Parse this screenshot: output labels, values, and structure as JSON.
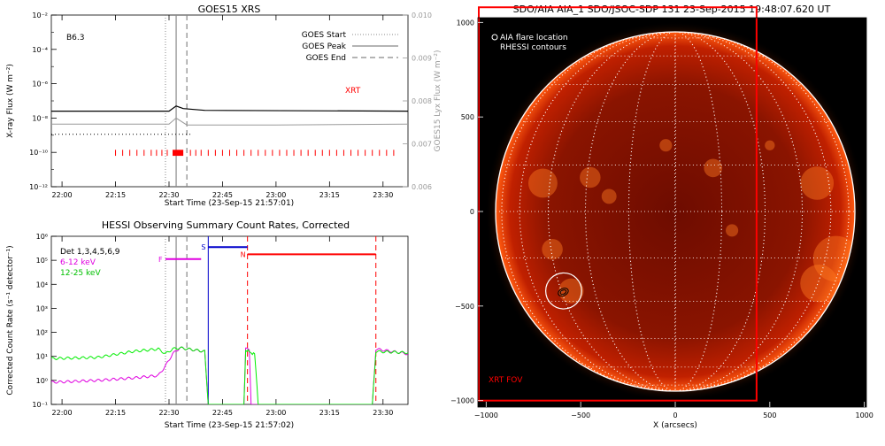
{
  "colors": {
    "black": "#000000",
    "gray": "#9a9a9a",
    "red": "#ff0000",
    "magenta": "#e000e0",
    "green": "#00ee00",
    "blue": "#0000cc",
    "sun_core": "#c81800",
    "sun_limb": "#5a0500",
    "background_dark": "#000000"
  },
  "chart_data": [
    {
      "id": "goes",
      "type": "line",
      "title": "GOES15 XRS",
      "xlabel": "Start Time (23-Sep-15 21:57:01)",
      "ylabel": "X-ray Flux (W m⁻²)",
      "ylabel_right": "GOES15 Lyx Flux (W m⁻²)",
      "x_ticks": [
        "22:00",
        "22:15",
        "22:30",
        "22:45",
        "23:00",
        "23:15",
        "23:30"
      ],
      "x_range_minutes": [
        -3,
        97
      ],
      "y_log_range": [
        -12,
        -2
      ],
      "y_ticks": [
        "10⁻²",
        "10⁻⁴",
        "10⁻⁶",
        "10⁻⁸",
        "10⁻¹⁰",
        "10⁻¹²"
      ],
      "y_right_ticks": [
        "0.010",
        "0.009",
        "0.008",
        "0.007",
        "0.006"
      ],
      "y_right_range": [
        0.006,
        0.01
      ],
      "class_label": "B6.3",
      "legend": [
        {
          "label": "GOES Start",
          "style": "dotted"
        },
        {
          "label": "GOES Peak",
          "style": "solid"
        },
        {
          "label": "GOES End",
          "style": "dashed"
        }
      ],
      "legend_position": "top-right",
      "xrt_label": "XRT",
      "series": [
        {
          "style": "solid-black",
          "points": [
            [
              -3,
              -7.6
            ],
            [
              30,
              -7.6
            ],
            [
              32,
              -7.3
            ],
            [
              34,
              -7.45
            ],
            [
              40,
              -7.55
            ],
            [
              97,
              -7.6
            ]
          ]
        },
        {
          "style": "solid-gray",
          "points": [
            [
              -3,
              -8.35
            ],
            [
              30,
              -8.35
            ],
            [
              32,
              -8.0
            ],
            [
              35,
              -8.4
            ],
            [
              60,
              -8.4
            ],
            [
              97,
              -8.35
            ]
          ]
        },
        {
          "style": "dotted-black",
          "points": [
            [
              -3,
              -8.95
            ],
            [
              36,
              -8.95
            ]
          ]
        }
      ],
      "xrt_obs_minutes": [
        15,
        17,
        19,
        21,
        23,
        25,
        26.5,
        28,
        29.5,
        36,
        37.5,
        39,
        41,
        43,
        45,
        47,
        49,
        51,
        53,
        55,
        57,
        59,
        61,
        63,
        65,
        67,
        69,
        71,
        73,
        75,
        77,
        79,
        81,
        83,
        85,
        87,
        89,
        91,
        93
      ],
      "xrt_block_minutes": [
        31,
        34
      ],
      "goes_start_minute": 29,
      "goes_peak_minute": 32,
      "goes_end_minute": 35
    },
    {
      "id": "hessi",
      "type": "line",
      "title": "HESSI Observing Summary Count Rates, Corrected",
      "xlabel": "Start Time (23-Sep-15 21:57:02)",
      "ylabel": "Corrected Count Rate (s⁻¹ detector⁻¹)",
      "x_ticks": [
        "22:00",
        "22:15",
        "22:30",
        "22:45",
        "23:00",
        "23:15",
        "23:30"
      ],
      "x_range_minutes": [
        -3,
        97
      ],
      "y_log_range": [
        -1,
        6
      ],
      "y_ticks": [
        "10⁶",
        "10⁵",
        "10⁴",
        "10³",
        "10²",
        "10¹",
        "10⁰",
        "10⁻¹"
      ],
      "legend": [
        {
          "label": "Det 1,3,4,5,6,9",
          "color": "black"
        },
        {
          "label": "6-12 keV",
          "color": "magenta"
        },
        {
          "label": "12-25 keV",
          "color": "green"
        }
      ],
      "legend_position": "top-left",
      "flags": [
        {
          "label": "F",
          "minutes": [
            29,
            39
          ],
          "log_y": 5.05
        },
        {
          "label": "S",
          "minutes": [
            41,
            52
          ],
          "log_y": 5.55
        },
        {
          "label": "N",
          "minutes": [
            52,
            88
          ],
          "log_y": 5.25
        }
      ],
      "series": [
        {
          "name": "6-12 keV",
          "points": [
            [
              -3,
              -0.08
            ],
            [
              10,
              0.0
            ],
            [
              20,
              0.1
            ],
            [
              27,
              0.2
            ],
            [
              29,
              0.6
            ],
            [
              31,
              1.1
            ],
            [
              33,
              1.35
            ],
            [
              40,
              1.2
            ],
            [
              41,
              -1
            ],
            [
              51,
              -1
            ],
            [
              51.5,
              1.3
            ],
            [
              52.5,
              1.3
            ],
            [
              53,
              -1
            ],
            [
              87,
              -1
            ],
            [
              88,
              1.3
            ],
            [
              97,
              1.1
            ]
          ]
        },
        {
          "name": "12-25 keV",
          "points": [
            [
              -3,
              0.9
            ],
            [
              10,
              0.95
            ],
            [
              20,
              1.2
            ],
            [
              27,
              1.3
            ],
            [
              29,
              1.1
            ],
            [
              31,
              1.3
            ],
            [
              33,
              1.35
            ],
            [
              40,
              1.2
            ],
            [
              41,
              -1
            ],
            [
              51,
              -1
            ],
            [
              51.5,
              1.2
            ],
            [
              54,
              1.15
            ],
            [
              55,
              -1
            ],
            [
              87,
              -1
            ],
            [
              88,
              1.2
            ],
            [
              97,
              1.15
            ]
          ]
        }
      ],
      "goes_start_minute": 29,
      "goes_peak_minute": 32,
      "goes_end_minute": 35,
      "red_dashed_minutes": [
        52,
        88
      ]
    },
    {
      "id": "aia",
      "type": "scatter",
      "title": "SDO/AIA AIA_1 SDO/JSOC-SDP 131 23-Sep-2015 19:48:07.620 UT",
      "xlabel": "X (arcsecs)",
      "ylabel": "",
      "x_ticks": [
        "−1000",
        "−500",
        "0",
        "500",
        "1000"
      ],
      "y_ticks": [
        "1000",
        "500",
        "0",
        "−500",
        "−1000"
      ],
      "x_range": [
        -1100,
        1100
      ],
      "y_range": [
        -1050,
        1050
      ],
      "legend": [
        {
          "label": "AIA flare location",
          "marker": "circle"
        },
        {
          "label": "RHESSI contours",
          "marker": "none"
        }
      ],
      "legend_position": "top-left",
      "solar_radius": 950,
      "flare_location": [
        -590,
        -420
      ],
      "flare_circle_radius": 95,
      "xrt_fov_label": "XRT FOV",
      "xrt_fov_box": [
        -1100,
        -1000,
        430,
        1080
      ]
    }
  ]
}
